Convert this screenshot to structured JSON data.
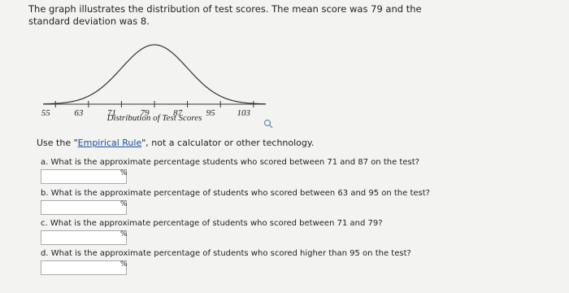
{
  "intro": {
    "text_1": "The graph illustrates the distribution of test scores. The mean score was",
    "mean": 79,
    "text_2": "and the standard deviation was",
    "sd": 8,
    "text_3": "."
  },
  "chart": {
    "type": "normal-curve",
    "xlabel": "Distribution of Test Scores",
    "xlim": [
      52,
      106
    ],
    "xticks": [
      55,
      63,
      71,
      79,
      87,
      95,
      103
    ],
    "color": "#333333"
  },
  "instruction": {
    "before": "Use the \"",
    "link": "Empirical Rule",
    "after": "\", not a calculator or other technology."
  },
  "questions": [
    {
      "label": "a. What is the approximate percentage students who scored between 71 and 87 on the test?",
      "unit": "%"
    },
    {
      "label": "b. What is the approximate percentage of students who scored between 63 and 95 on the test?",
      "unit": "%"
    },
    {
      "label": "c. What is the approximate percentage of students who scored between 71 and 79?",
      "unit": "%"
    },
    {
      "label": "d. What is the approximate percentage of students who scored higher than 95 on the test?",
      "unit": "%"
    }
  ]
}
